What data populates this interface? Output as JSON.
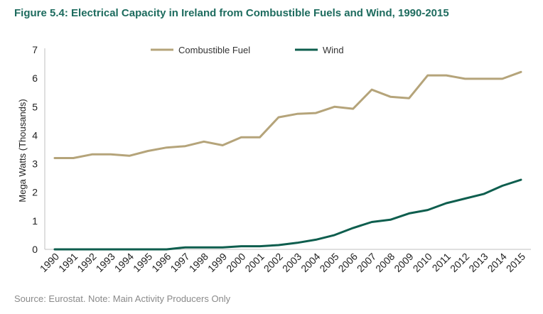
{
  "figure": {
    "title": "Figure 5.4: Electrical Capacity in Ireland from Combustible Fuels and Wind, 1990-2015",
    "source": "Source: Eurostat. Note: Main Activity Producers Only"
  },
  "chart_data": {
    "type": "line",
    "title": "Figure 5.4: Electrical Capacity in Ireland from Combustible Fuels and Wind, 1990-2015",
    "xlabel": "",
    "ylabel": "Mega Watts (Thousands)",
    "ylim": [
      0,
      7
    ],
    "yticks": [
      "0",
      "1",
      "2",
      "3",
      "4",
      "5",
      "6",
      "7"
    ],
    "grid": false,
    "legend": "top-center",
    "x": [
      "1990",
      "1991",
      "1992",
      "1993",
      "1994",
      "1995",
      "1996",
      "1997",
      "1998",
      "1999",
      "2000",
      "2001",
      "2002",
      "2003",
      "2004",
      "2005",
      "2006",
      "2007",
      "2008",
      "2009",
      "2010",
      "2011",
      "2012",
      "2013",
      "2014",
      "2015"
    ],
    "series": [
      {
        "name": "Combustible Fuel",
        "color": "#b5a47a",
        "values": [
          3.2,
          3.2,
          3.33,
          3.33,
          3.28,
          3.45,
          3.57,
          3.62,
          3.78,
          3.65,
          3.93,
          3.93,
          4.63,
          4.75,
          4.78,
          5.0,
          4.93,
          5.6,
          5.35,
          5.3,
          6.1,
          6.1,
          5.98,
          5.98,
          5.98,
          6.22
        ]
      },
      {
        "name": "Wind",
        "color": "#0e5e4e",
        "values": [
          0.0,
          0.0,
          0.0,
          0.0,
          0.0,
          0.0,
          0.0,
          0.07,
          0.07,
          0.07,
          0.11,
          0.11,
          0.15,
          0.23,
          0.34,
          0.5,
          0.75,
          0.96,
          1.04,
          1.26,
          1.38,
          1.62,
          1.78,
          1.94,
          2.23,
          2.44
        ]
      }
    ]
  }
}
